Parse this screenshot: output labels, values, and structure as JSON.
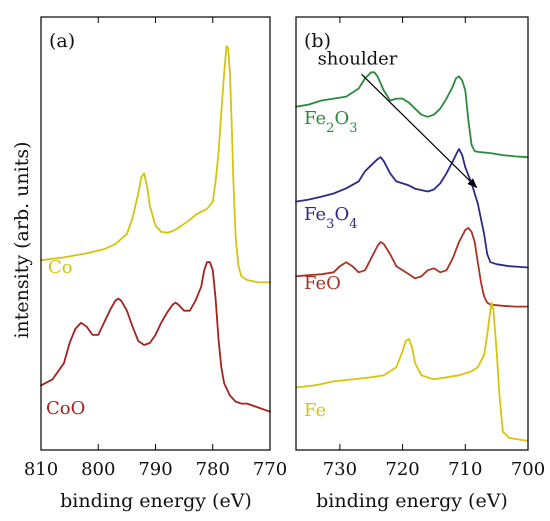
{
  "figure": {
    "shared_ylabel": "intensity (arb. units)",
    "colors": {
      "Co": "#d4c311",
      "CoO": "#a3221f",
      "Fe2O3": "#2a8a3c",
      "Fe3O4": "#2c2a86",
      "FeO": "#a83224",
      "Fe": "#d8c40c"
    }
  },
  "chart_data": [
    {
      "type": "line",
      "panel_label": "(a)",
      "xlabel": "binding energy (eV)",
      "ylabel": "intensity (arb. units)",
      "xlim": [
        810,
        770
      ],
      "ylim": [
        0,
        1
      ],
      "x_reversed": true,
      "xticks": [
        810,
        800,
        790,
        780,
        770
      ],
      "xtick_labels": [
        "810",
        "800",
        "790",
        "780",
        "770"
      ],
      "grid": false,
      "series": [
        {
          "name": "Co",
          "label_html": "Co",
          "color": "#d4c311",
          "points": [
            [
              810,
              0.455
            ],
            [
              806,
              0.462
            ],
            [
              802,
              0.472
            ],
            [
              799,
              0.482
            ],
            [
              797,
              0.495
            ],
            [
              795,
              0.52
            ],
            [
              794,
              0.56
            ],
            [
              793,
              0.62
            ],
            [
              792.5,
              0.66
            ],
            [
              792,
              0.67
            ],
            [
              791.5,
              0.64
            ],
            [
              791,
              0.59
            ],
            [
              790,
              0.54
            ],
            [
              789,
              0.525
            ],
            [
              788,
              0.523
            ],
            [
              787,
              0.527
            ],
            [
              786,
              0.535
            ],
            [
              785,
              0.545
            ],
            [
              784,
              0.555
            ],
            [
              783,
              0.567
            ],
            [
              782,
              0.575
            ],
            [
              781,
              0.582
            ],
            [
              780,
              0.6
            ],
            [
              779.5,
              0.65
            ],
            [
              779,
              0.72
            ],
            [
              778.5,
              0.82
            ],
            [
              778,
              0.92
            ],
            [
              777.6,
              0.985
            ],
            [
              777.3,
              0.98
            ],
            [
              777,
              0.92
            ],
            [
              776.7,
              0.8
            ],
            [
              776.4,
              0.65
            ],
            [
              776,
              0.51
            ],
            [
              775.5,
              0.44
            ],
            [
              775,
              0.415
            ],
            [
              774,
              0.406
            ],
            [
              773,
              0.403
            ],
            [
              772,
              0.4
            ],
            [
              771,
              0.4
            ],
            [
              770,
              0.4
            ]
          ]
        },
        {
          "name": "CoO",
          "label_html": "CoO",
          "color": "#a3221f",
          "points": [
            [
              810,
              0.145
            ],
            [
              808,
              0.16
            ],
            [
              806,
              0.2
            ],
            [
              805,
              0.25
            ],
            [
              804,
              0.285
            ],
            [
              803,
              0.3
            ],
            [
              802,
              0.29
            ],
            [
              801,
              0.27
            ],
            [
              800,
              0.27
            ],
            [
              799,
              0.3
            ],
            [
              798,
              0.33
            ],
            [
              797,
              0.355
            ],
            [
              796.5,
              0.36
            ],
            [
              796,
              0.355
            ],
            [
              795,
              0.33
            ],
            [
              794,
              0.29
            ],
            [
              793,
              0.255
            ],
            [
              792,
              0.245
            ],
            [
              791,
              0.25
            ],
            [
              790,
              0.27
            ],
            [
              789,
              0.3
            ],
            [
              788,
              0.325
            ],
            [
              787,
              0.345
            ],
            [
              786.5,
              0.35
            ],
            [
              786,
              0.345
            ],
            [
              785,
              0.33
            ],
            [
              784,
              0.33
            ],
            [
              783,
              0.355
            ],
            [
              782,
              0.39
            ],
            [
              781.5,
              0.43
            ],
            [
              781,
              0.45
            ],
            [
              780.5,
              0.45
            ],
            [
              780,
              0.43
            ],
            [
              779.5,
              0.36
            ],
            [
              779,
              0.26
            ],
            [
              778.5,
              0.19
            ],
            [
              778,
              0.15
            ],
            [
              777,
              0.12
            ],
            [
              776,
              0.105
            ],
            [
              775,
              0.1
            ],
            [
              774,
              0.1
            ],
            [
              773,
              0.095
            ],
            [
              772,
              0.09
            ],
            [
              771,
              0.085
            ],
            [
              770,
              0.08
            ]
          ]
        }
      ]
    },
    {
      "type": "line",
      "panel_label": "(b)",
      "xlabel": "binding energy (eV)",
      "xlim": [
        737,
        700
      ],
      "ylim": [
        0,
        1
      ],
      "x_reversed": true,
      "xticks": [
        730,
        720,
        710,
        700
      ],
      "xtick_labels": [
        "730",
        "720",
        "710",
        "700"
      ],
      "grid": false,
      "annotations": [
        {
          "text": "shoulder",
          "arrow_from": [
            727.5,
            0.93
          ],
          "arrow_to": [
            708.2,
            0.635
          ]
        }
      ],
      "series": [
        {
          "name": "Fe2O3",
          "label_html": "Fe<tspan baseline-shift=\"sub\" font-size=\"13\">2</tspan>O<tspan baseline-shift=\"sub\" font-size=\"13\">3</tspan>",
          "color": "#2a8a3c",
          "points": [
            [
              737,
              0.835
            ],
            [
              735,
              0.84
            ],
            [
              733,
              0.85
            ],
            [
              731,
              0.855
            ],
            [
              729,
              0.86
            ],
            [
              727,
              0.88
            ],
            [
              726,
              0.905
            ],
            [
              725,
              0.92
            ],
            [
              724.5,
              0.92
            ],
            [
              724,
              0.91
            ],
            [
              723,
              0.875
            ],
            [
              722,
              0.85
            ],
            [
              721,
              0.855
            ],
            [
              720,
              0.855
            ],
            [
              719,
              0.845
            ],
            [
              718,
              0.83
            ],
            [
              717,
              0.815
            ],
            [
              716,
              0.81
            ],
            [
              715,
              0.815
            ],
            [
              714,
              0.83
            ],
            [
              713,
              0.855
            ],
            [
              712,
              0.885
            ],
            [
              711.5,
              0.905
            ],
            [
              711,
              0.91
            ],
            [
              710.5,
              0.9
            ],
            [
              710,
              0.875
            ],
            [
              709.5,
              0.8
            ],
            [
              709,
              0.74
            ],
            [
              708.5,
              0.725
            ],
            [
              708,
              0.723
            ],
            [
              706,
              0.72
            ],
            [
              704,
              0.715
            ],
            [
              702,
              0.712
            ],
            [
              700,
              0.71
            ]
          ]
        },
        {
          "name": "Fe3O4",
          "label_html": "Fe<tspan baseline-shift=\"sub\" font-size=\"13\">3</tspan>O<tspan baseline-shift=\"sub\" font-size=\"13\">4</tspan>",
          "color": "#2c2a86",
          "points": [
            [
              737,
              0.6
            ],
            [
              735,
              0.605
            ],
            [
              733,
              0.612
            ],
            [
              731,
              0.62
            ],
            [
              729,
              0.633
            ],
            [
              727,
              0.65
            ],
            [
              726,
              0.675
            ],
            [
              725,
              0.69
            ],
            [
              724,
              0.705
            ],
            [
              723.5,
              0.71
            ],
            [
              723,
              0.7
            ],
            [
              722,
              0.67
            ],
            [
              721,
              0.65
            ],
            [
              720,
              0.645
            ],
            [
              719,
              0.64
            ],
            [
              718,
              0.632
            ],
            [
              716,
              0.625
            ],
            [
              715,
              0.63
            ],
            [
              714,
              0.645
            ],
            [
              713,
              0.67
            ],
            [
              712,
              0.7
            ],
            [
              711.2,
              0.725
            ],
            [
              711,
              0.73
            ],
            [
              710.5,
              0.715
            ],
            [
              710,
              0.685
            ],
            [
              709,
              0.645
            ],
            [
              708,
              0.595
            ],
            [
              707,
              0.52
            ],
            [
              706.5,
              0.47
            ],
            [
              706,
              0.45
            ],
            [
              705,
              0.445
            ],
            [
              703,
              0.44
            ],
            [
              701,
              0.438
            ],
            [
              700,
              0.437
            ]
          ]
        },
        {
          "name": "FeO",
          "label_html": "FeO",
          "color": "#a83224",
          "points": [
            [
              737,
              0.415
            ],
            [
              735,
              0.418
            ],
            [
              733,
              0.42
            ],
            [
              731,
              0.425
            ],
            [
              730,
              0.44
            ],
            [
              729,
              0.45
            ],
            [
              728,
              0.44
            ],
            [
              727,
              0.425
            ],
            [
              726,
              0.43
            ],
            [
              725,
              0.46
            ],
            [
              724,
              0.49
            ],
            [
              723.5,
              0.5
            ],
            [
              723,
              0.495
            ],
            [
              722,
              0.47
            ],
            [
              721,
              0.44
            ],
            [
              720,
              0.43
            ],
            [
              719,
              0.42
            ],
            [
              718,
              0.41
            ],
            [
              717,
              0.415
            ],
            [
              716,
              0.43
            ],
            [
              715,
              0.435
            ],
            [
              714,
              0.425
            ],
            [
              713,
              0.43
            ],
            [
              712,
              0.46
            ],
            [
              711,
              0.5
            ],
            [
              710,
              0.53
            ],
            [
              709.5,
              0.535
            ],
            [
              709,
              0.525
            ],
            [
              708.5,
              0.5
            ],
            [
              708,
              0.45
            ],
            [
              707.5,
              0.4
            ],
            [
              707,
              0.365
            ],
            [
              706.5,
              0.35
            ],
            [
              706,
              0.345
            ],
            [
              704,
              0.342
            ],
            [
              702,
              0.34
            ],
            [
              700,
              0.34
            ]
          ]
        },
        {
          "name": "Fe",
          "label_html": "Fe",
          "color": "#d8c40c",
          "points": [
            [
              737,
              0.14
            ],
            [
              734,
              0.145
            ],
            [
              731,
              0.155
            ],
            [
              728,
              0.16
            ],
            [
              725,
              0.165
            ],
            [
              723,
              0.17
            ],
            [
              721,
              0.19
            ],
            [
              720,
              0.23
            ],
            [
              719.5,
              0.255
            ],
            [
              719,
              0.26
            ],
            [
              718.5,
              0.24
            ],
            [
              718,
              0.2
            ],
            [
              717,
              0.17
            ],
            [
              715,
              0.16
            ],
            [
              713,
              0.165
            ],
            [
              711,
              0.17
            ],
            [
              709,
              0.18
            ],
            [
              708,
              0.19
            ],
            [
              707,
              0.22
            ],
            [
              706.5,
              0.27
            ],
            [
              706,
              0.33
            ],
            [
              705.8,
              0.35
            ],
            [
              705.5,
              0.33
            ],
            [
              705,
              0.23
            ],
            [
              704.5,
              0.11
            ],
            [
              704,
              0.03
            ],
            [
              703,
              0.015
            ],
            [
              701,
              0.01
            ],
            [
              700,
              0.008
            ]
          ]
        }
      ]
    }
  ]
}
